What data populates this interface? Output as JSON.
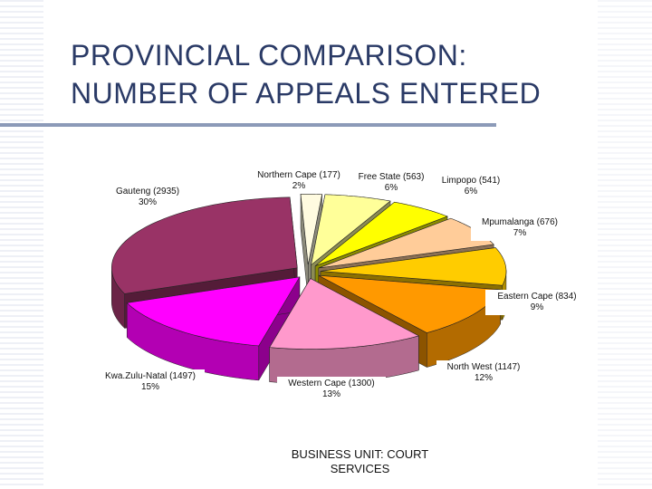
{
  "slide": {
    "title_line1": "PROVINCIAL COMPARISON:",
    "title_line2": "NUMBER OF APPEALS ENTERED",
    "footer_line1": "BUSINESS UNIT:  COURT",
    "footer_line2": "SERVICES"
  },
  "chart_data": {
    "type": "pie",
    "title": "",
    "categories": [
      "Northern Cape",
      "Free State",
      "Limpopo",
      "Mpumalanga",
      "Eastern Cape",
      "North West",
      "Western Cape",
      "Kwa.Zulu-Natal",
      "Gauteng"
    ],
    "values": [
      177,
      563,
      541,
      676,
      834,
      1147,
      1300,
      1497,
      2935
    ],
    "percent": [
      2,
      6,
      6,
      7,
      9,
      12,
      13,
      15,
      30
    ],
    "labels": [
      {
        "name": "Northern Cape (177)",
        "pct": "2%"
      },
      {
        "name": "Free State (563)",
        "pct": "6%"
      },
      {
        "name": "Limpopo (541)",
        "pct": "6%"
      },
      {
        "name": "Mpumalanga (676)",
        "pct": "7%"
      },
      {
        "name": "Eastern Cape (834)",
        "pct": "9%"
      },
      {
        "name": "North West (1147)",
        "pct": "12%"
      },
      {
        "name": "Western Cape (1300)",
        "pct": "13%"
      },
      {
        "name": "Kwa.Zulu-Natal (1497)",
        "pct": "15%"
      },
      {
        "name": "Gauteng (2935)",
        "pct": "30%"
      }
    ],
    "colors": [
      "#fffbe0",
      "#ffff99",
      "#ffff00",
      "#ffcc99",
      "#ffcc00",
      "#ff9900",
      "#ff99cc",
      "#ff00ff",
      "#993366"
    ],
    "exploded": true,
    "three_d": true,
    "legend": "none"
  }
}
